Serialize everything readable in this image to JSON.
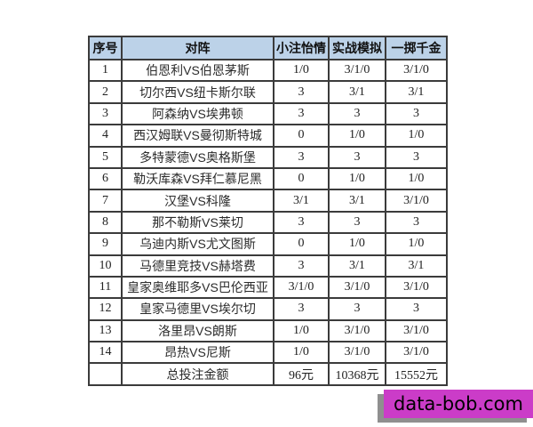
{
  "chart_data": {
    "type": "table",
    "columns": [
      "序号",
      "对阵",
      "小注怡情",
      "实战模拟",
      "一掷千金"
    ],
    "rows": [
      {
        "no": "1",
        "match": "伯恩利VS伯恩茅斯",
        "small_bet": "1/0",
        "simulation": "3/1/0",
        "big_bet": "3/1/0"
      },
      {
        "no": "2",
        "match": "切尔西VS纽卡斯尔联",
        "small_bet": "3",
        "simulation": "3/1",
        "big_bet": "3/1"
      },
      {
        "no": "3",
        "match": "阿森纳VS埃弗顿",
        "small_bet": "3",
        "simulation": "3",
        "big_bet": "3"
      },
      {
        "no": "4",
        "match": "西汉姆联VS曼彻斯特城",
        "small_bet": "0",
        "simulation": "1/0",
        "big_bet": "1/0"
      },
      {
        "no": "5",
        "match": "多特蒙德VS奥格斯堡",
        "small_bet": "3",
        "simulation": "3",
        "big_bet": "3"
      },
      {
        "no": "6",
        "match": "勒沃库森VS拜仁慕尼黑",
        "small_bet": "0",
        "simulation": "1/0",
        "big_bet": "1/0"
      },
      {
        "no": "7",
        "match": "汉堡VS科隆",
        "small_bet": "3/1",
        "simulation": "3/1",
        "big_bet": "3/1/0"
      },
      {
        "no": "8",
        "match": "那不勒斯VS莱切",
        "small_bet": "3",
        "simulation": "3",
        "big_bet": "3"
      },
      {
        "no": "9",
        "match": "乌迪内斯VS尤文图斯",
        "small_bet": "0",
        "simulation": "1/0",
        "big_bet": "1/0"
      },
      {
        "no": "10",
        "match": "马德里竞技VS赫塔费",
        "small_bet": "3",
        "simulation": "3/1",
        "big_bet": "3/1"
      },
      {
        "no": "11",
        "match": "皇家奥维耶多VS巴伦西亚",
        "small_bet": "3/1/0",
        "simulation": "3/1/0",
        "big_bet": "3/1/0"
      },
      {
        "no": "12",
        "match": "皇家马德里VS埃尔切",
        "small_bet": "3",
        "simulation": "3",
        "big_bet": "3"
      },
      {
        "no": "13",
        "match": "洛里昂VS朗斯",
        "small_bet": "1/0",
        "simulation": "3/1/0",
        "big_bet": "3/1/0"
      },
      {
        "no": "14",
        "match": "昂热VS尼斯",
        "small_bet": "1/0",
        "simulation": "3/1/0",
        "big_bet": "3/1/0"
      }
    ],
    "total": {
      "no": "",
      "label": "总投注金额",
      "small_bet": "96元",
      "simulation": "10368元",
      "big_bet": "15552元"
    }
  },
  "watermark": {
    "text": "data-bob.com",
    "bg_color": "#cb3cc8",
    "shadow_color": "#8f8f8f"
  },
  "colors": {
    "header_bg": "#bcd2e8",
    "border": "#3b3b3b",
    "text": "#2b2b2b"
  }
}
